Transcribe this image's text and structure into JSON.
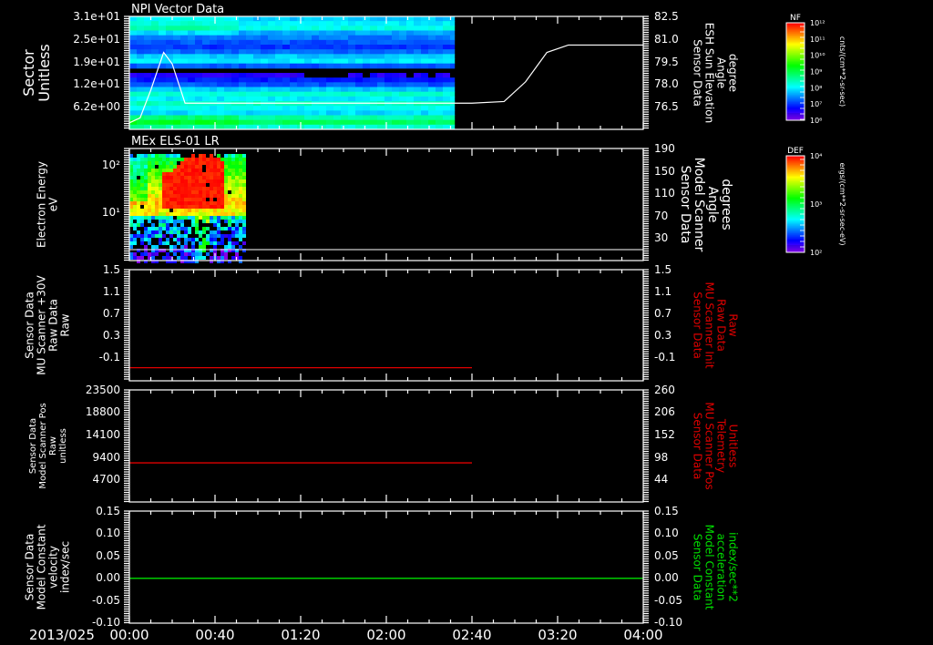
{
  "colors": {
    "background": "#000000",
    "axis": "#ffffff",
    "red_trace": "#e00000",
    "green_trace": "#00e000",
    "white_trace": "#ffffff"
  },
  "time_axis": {
    "date_label": "2013/025",
    "ticks": [
      "00:00",
      "00:40",
      "01:20",
      "02:00",
      "02:40",
      "03:20",
      "04:00"
    ],
    "range_minutes": [
      0,
      240
    ]
  },
  "chart_data": [
    {
      "type": "heatmap",
      "title": "NPI Vector Data",
      "ylabel_lines": [
        "Sector",
        "Unitless"
      ],
      "yticks": [
        "3.1e+01",
        "2.5e+01",
        "1.9e+01",
        "1.2e+01",
        "6.2e+00"
      ],
      "y2label_lines": [
        "Sensor Data",
        "ESH Sun Elevation",
        "Angle",
        "degree"
      ],
      "y2ticks": [
        "82.5",
        "81.0",
        "79.5",
        "78.0",
        "76.5"
      ],
      "y2lim": [
        75.6,
        82.5
      ],
      "data_end_minutes": 152,
      "sector_band_log_flux": [
        7.8,
        8.0,
        8.2,
        7.6,
        7.4,
        7.2,
        7.0,
        7.3,
        7.8,
        8.0,
        7.2,
        null,
        6.6,
        6.9,
        7.2,
        7.8,
        8.3,
        8.0,
        8.4,
        8.1,
        7.9,
        8.5,
        8.9,
        8.3
      ],
      "line_series": {
        "name": "ESH Sun Elevation Angle",
        "x_minutes": [
          0,
          5,
          10,
          16,
          20,
          26,
          40,
          80,
          120,
          160,
          175,
          185,
          195,
          205,
          240
        ],
        "y": [
          76.0,
          76.3,
          78.0,
          80.3,
          79.6,
          77.2,
          77.2,
          77.2,
          77.2,
          77.2,
          77.3,
          78.5,
          80.3,
          80.75,
          80.75
        ]
      },
      "colorbar": {
        "label": "NF",
        "units": "cnts/(cm**2-sr-sec)",
        "ticks": [
          "10¹²",
          "10¹¹",
          "10¹⁰",
          "10⁹",
          "10⁸",
          "10⁷",
          "10⁶"
        ],
        "log_range": [
          6,
          12
        ]
      }
    },
    {
      "type": "heatmap",
      "title": "MEx ELS-01 LR",
      "ylabel_lines": [
        "Electron Energy",
        "eV"
      ],
      "yticks": [
        "10²",
        "10¹"
      ],
      "y2label_lines": [
        "Sensor Data",
        "Model Scanner",
        "Angle",
        "degrees"
      ],
      "y2ticks": [
        "190",
        "150",
        "110",
        "70",
        "30"
      ],
      "y2lim": [
        0,
        190
      ],
      "data_end_minutes": 54,
      "line_series": {
        "name": "Model Scanner Angle",
        "y_constant": 10
      },
      "peak_region": {
        "start_minutes": 14,
        "end_minutes": 44,
        "energy_range_eV": [
          15,
          150
        ]
      },
      "colorbar": {
        "label": "DEF",
        "units": "ergs/(cm**2-sr-sec-eV)",
        "ticks": [
          "10⁴",
          "10³",
          "10²"
        ],
        "log_range": [
          2,
          4
        ]
      }
    },
    {
      "type": "line",
      "ylabel_lines": [
        "Sensor Data",
        "MU Scanner +30V",
        "Raw Data",
        "Raw"
      ],
      "yticks": [
        "1.5",
        "1.1",
        "0.7",
        "0.3",
        "-0.1"
      ],
      "ylim": [
        -0.2,
        1.5
      ],
      "y2label_lines": [
        "Sensor Data",
        "MU Scanner Init",
        "Raw Data",
        "Raw"
      ],
      "y2ticks": [
        "1.5",
        "1.1",
        "0.7",
        "0.3",
        "-0.1"
      ],
      "series": [
        {
          "name": "MU Scanner Init",
          "color": "#e00000",
          "x_minutes": [
            0,
            160
          ],
          "y": [
            0.0,
            0.0
          ]
        }
      ]
    },
    {
      "type": "line",
      "ylabel_lines": [
        "Sensor Data",
        "Model Scanner Pos",
        "Raw",
        "unitless"
      ],
      "yticks": [
        "23500",
        "18800",
        "14100",
        "9400",
        "4700"
      ],
      "ylim": [
        0,
        23500
      ],
      "y2label_lines": [
        "Sensor Data",
        "MU Scanner Pos",
        "Telemetry",
        "Unitless"
      ],
      "y2ticks": [
        "260",
        "206",
        "152",
        "98",
        "44"
      ],
      "series": [
        {
          "name": "MU Scanner Pos",
          "color": "#e00000",
          "x_minutes": [
            0,
            160
          ],
          "y": [
            8200,
            8200
          ]
        }
      ]
    },
    {
      "type": "line",
      "ylabel_lines": [
        "Sensor Data",
        "Model Constant",
        "velocity",
        "index/sec"
      ],
      "yticks": [
        "0.15",
        "0.10",
        "0.05",
        "0.00",
        "-0.05",
        "-0.10"
      ],
      "ylim": [
        -0.1,
        0.15
      ],
      "y2label_lines": [
        "Sensor Data",
        "Model Constant",
        "acceleration",
        "index/sec**2"
      ],
      "y2ticks": [
        "0.15",
        "0.10",
        "0.05",
        "0.00",
        "-0.05",
        "-0.10"
      ],
      "series": [
        {
          "name": "Model Constant acceleration",
          "color": "#00e000",
          "x_minutes": [
            0,
            240
          ],
          "y": [
            0.0,
            0.0
          ]
        }
      ]
    }
  ]
}
